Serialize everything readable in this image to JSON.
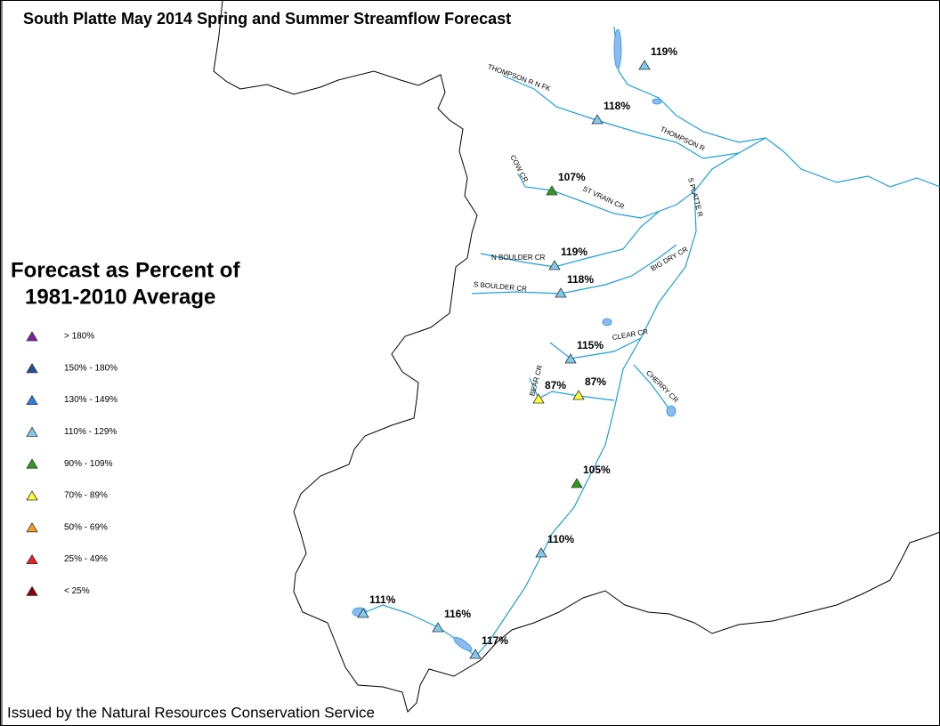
{
  "title": "South Platte May 2014 Spring and Summer Streamflow Forecast",
  "legend": {
    "title_lines": [
      "Forecast as Percent of",
      "1981-2010 Average"
    ],
    "items": [
      {
        "label": "> 180%",
        "color": "#7b1fa2"
      },
      {
        "label": "150% - 180%",
        "color": "#1f4e9c"
      },
      {
        "label": "130% - 149%",
        "color": "#2f7fe0"
      },
      {
        "label": "110% - 129%",
        "color": "#7ecbef"
      },
      {
        "label": "90% - 109%",
        "color": "#2e9c1e"
      },
      {
        "label": "70% - 89%",
        "color": "#ffff33"
      },
      {
        "label": "50% - 69%",
        "color": "#f5a020"
      },
      {
        "label": "25% - 49%",
        "color": "#e82020"
      },
      {
        "label": "< 25%",
        "color": "#8b0000"
      }
    ]
  },
  "sites": [
    {
      "label": "119%",
      "color": "#7ecbef"
    },
    {
      "label": "118%",
      "color": "#7ecbef"
    },
    {
      "label": "107%",
      "color": "#2e9c1e"
    },
    {
      "label": "119%",
      "color": "#7ecbef"
    },
    {
      "label": "118%",
      "color": "#7ecbef"
    },
    {
      "label": "115%",
      "color": "#7ecbef"
    },
    {
      "label": "87%",
      "color": "#ffff33"
    },
    {
      "label": "87%",
      "color": "#ffff33"
    },
    {
      "label": "105%",
      "color": "#2e9c1e"
    },
    {
      "label": "110%",
      "color": "#7ecbef"
    },
    {
      "label": "111%",
      "color": "#7ecbef"
    },
    {
      "label": "116%",
      "color": "#7ecbef"
    },
    {
      "label": "117%",
      "color": "#7ecbef"
    }
  ],
  "rivers": [
    "THOMPSON R N FK",
    "THOMPSON R",
    "COW CR",
    "ST VRAIN CR",
    "S PLATTE R",
    "N BOULDER CR",
    "S BOULDER CR",
    "BIG DRY CR",
    "CLEAR CR",
    "CHERRY CR",
    "BEAR CR"
  ],
  "footer": "Issued by the Natural Resources Conservation Service"
}
